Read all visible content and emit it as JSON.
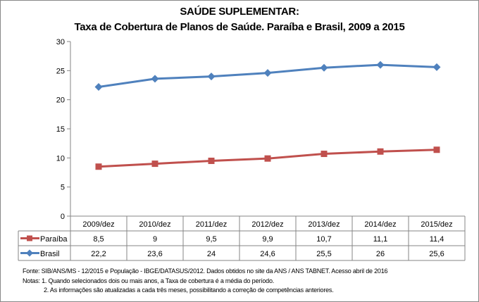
{
  "chart_data": {
    "type": "line",
    "title": "SAÚDE SUPLEMENTAR:",
    "subtitle": "Taxa de Cobertura de Planos de Saúde. Paraíba e Brasil, 2009 a 2015",
    "categories": [
      "2009/dez",
      "2010/dez",
      "2011/dez",
      "2012/dez",
      "2013/dez",
      "2014/dez",
      "2015/dez"
    ],
    "series": [
      {
        "name": "Paraíba",
        "color": "#c0504d",
        "marker": "square",
        "values": [
          8.5,
          9,
          9.5,
          9.9,
          10.7,
          11.1,
          11.4
        ],
        "labels": [
          "8,5",
          "9",
          "9,5",
          "9,9",
          "10,7",
          "11,1",
          "11,4"
        ]
      },
      {
        "name": "Brasil",
        "color": "#4f81bd",
        "marker": "diamond",
        "values": [
          22.2,
          23.6,
          24,
          24.6,
          25.5,
          26,
          25.6
        ],
        "labels": [
          "22,2",
          "23,6",
          "24",
          "24,6",
          "25,5",
          "26",
          "25,6"
        ]
      }
    ],
    "ylim": [
      0,
      30
    ],
    "yticks": [
      "0",
      "5",
      "10",
      "15",
      "20",
      "25",
      "30"
    ],
    "grid": false,
    "legend": "data-table"
  },
  "notes": {
    "source": "Fonte: SIB/ANS/MS - 12/2015 e População - IBGE/DATASUS/2012. Dados obtidos no site da ANS / ANS TABNET. Acesso abril de 2016",
    "note1": "Notas: 1. Quando selecionados dois ou mais anos, a Taxa de cobertura é a média do período.",
    "note2": "2. As informações são atualizadas a cada três meses, possibilitando a correção de competências anteriores."
  }
}
